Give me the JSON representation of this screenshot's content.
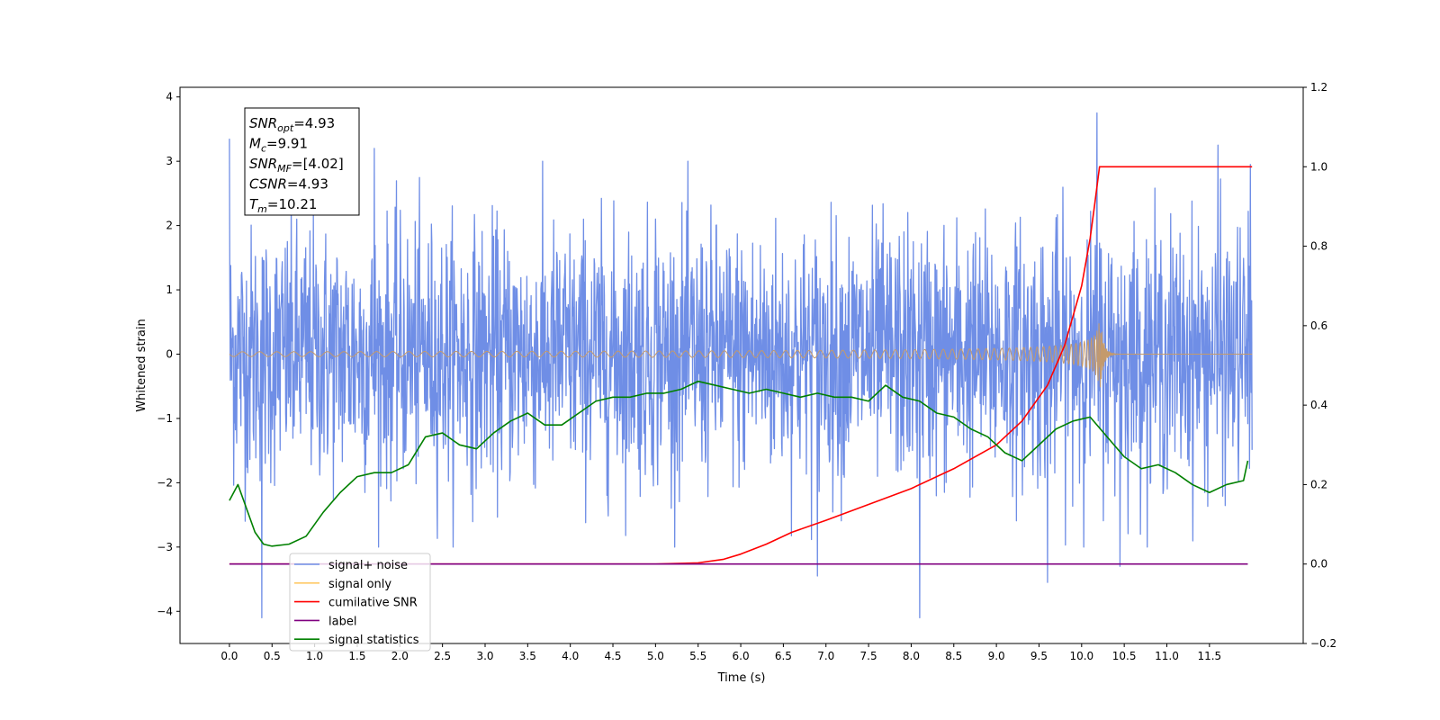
{
  "chart_data": {
    "type": "line",
    "xlabel": "Time (s)",
    "ylabel": "Whitened strain",
    "xlim": [
      -0.58,
      12.6
    ],
    "ylim": [
      -4.5,
      4.15
    ],
    "y2lim": [
      -0.2,
      1.2
    ],
    "x_ticks": [
      "0.0",
      "0.5",
      "1.0",
      "1.5",
      "2.0",
      "2.5",
      "3.0",
      "3.5",
      "4.0",
      "4.5",
      "5.0",
      "5.5",
      "6.0",
      "6.5",
      "7.0",
      "7.5",
      "8.0",
      "8.5",
      "9.0",
      "9.5",
      "10.0",
      "10.5",
      "11.0",
      "11.5"
    ],
    "y_ticks": [
      "4",
      "3",
      "2",
      "1",
      "0",
      "−1",
      "−2",
      "−3",
      "−4"
    ],
    "y2_ticks": [
      "1.2",
      "1.0",
      "0.8",
      "0.6",
      "0.4",
      "0.2",
      "0.0",
      "−0.2"
    ],
    "annotation": [
      {
        "base": "SNR",
        "sub": "opt",
        "rest": "=4.93"
      },
      {
        "base": "M",
        "sub": "c",
        "rest": "=9.91"
      },
      {
        "base": "SNR",
        "sub": "MF",
        "rest": "=[4.02]"
      },
      {
        "base": "CSNR",
        "sub": "",
        "rest": "=4.93"
      },
      {
        "base": "T",
        "sub": "m",
        "rest": "=10.21"
      }
    ],
    "legend_position": "lower-left",
    "series": [
      {
        "name": "signal+ noise",
        "color": "#6f8ee6",
        "axis": "left",
        "kind": "noise",
        "x_range": [
          0.0,
          12.0
        ],
        "typical_range": [
          -1.8,
          1.8
        ],
        "peaks": [
          [
            0.0,
            3.35
          ],
          [
            0.38,
            -4.1
          ],
          [
            1.7,
            3.2
          ],
          [
            5.0,
            2.1
          ],
          [
            6.9,
            -3.45
          ],
          [
            8.1,
            -4.1
          ],
          [
            9.6,
            -3.55
          ],
          [
            10.18,
            3.75
          ],
          [
            10.45,
            -3.3
          ],
          [
            11.6,
            3.25
          ],
          [
            11.98,
            2.95
          ]
        ]
      },
      {
        "name": "signal only",
        "color": "#c49a6c",
        "axis": "left",
        "kind": "chirp",
        "x_range": [
          0.0,
          10.21
        ],
        "peak_amplitude": 0.55,
        "merger_time": 10.21
      },
      {
        "name": "cumilative SNR",
        "color": "#ff0000",
        "axis": "right",
        "x": [
          0.0,
          5.0,
          5.5,
          5.8,
          6.0,
          6.3,
          6.6,
          7.0,
          7.5,
          8.0,
          8.5,
          9.0,
          9.3,
          9.6,
          9.8,
          10.0,
          10.1,
          10.15,
          10.21,
          10.4,
          12.0
        ],
        "values": [
          0.0,
          0.0,
          0.003,
          0.012,
          0.025,
          0.05,
          0.08,
          0.11,
          0.15,
          0.19,
          0.24,
          0.3,
          0.36,
          0.45,
          0.55,
          0.7,
          0.82,
          0.9,
          1.0,
          1.0,
          1.0
        ]
      },
      {
        "name": "label",
        "color": "#800080",
        "axis": "right",
        "x": [
          0.0,
          11.95
        ],
        "values": [
          0.0,
          0.0
        ]
      },
      {
        "name": "signal statistics",
        "color": "#008000",
        "axis": "right",
        "x": [
          0.0,
          0.1,
          0.2,
          0.3,
          0.4,
          0.5,
          0.7,
          0.9,
          1.1,
          1.3,
          1.5,
          1.7,
          1.9,
          2.1,
          2.3,
          2.5,
          2.7,
          2.9,
          3.1,
          3.3,
          3.5,
          3.7,
          3.9,
          4.1,
          4.3,
          4.5,
          4.7,
          4.9,
          5.1,
          5.3,
          5.5,
          5.7,
          5.9,
          6.1,
          6.3,
          6.5,
          6.7,
          6.9,
          7.1,
          7.3,
          7.5,
          7.7,
          7.9,
          8.1,
          8.3,
          8.5,
          8.7,
          8.9,
          9.1,
          9.3,
          9.5,
          9.7,
          9.9,
          10.1,
          10.3,
          10.5,
          10.7,
          10.9,
          11.1,
          11.3,
          11.5,
          11.7,
          11.9,
          11.95
        ],
        "values": [
          0.16,
          0.2,
          0.14,
          0.08,
          0.05,
          0.045,
          0.05,
          0.07,
          0.13,
          0.18,
          0.22,
          0.23,
          0.23,
          0.25,
          0.32,
          0.33,
          0.3,
          0.29,
          0.33,
          0.36,
          0.38,
          0.35,
          0.35,
          0.38,
          0.41,
          0.42,
          0.42,
          0.43,
          0.43,
          0.44,
          0.46,
          0.45,
          0.44,
          0.43,
          0.44,
          0.43,
          0.42,
          0.43,
          0.42,
          0.42,
          0.41,
          0.45,
          0.42,
          0.41,
          0.38,
          0.37,
          0.34,
          0.32,
          0.28,
          0.26,
          0.3,
          0.34,
          0.36,
          0.37,
          0.32,
          0.27,
          0.24,
          0.25,
          0.23,
          0.2,
          0.18,
          0.2,
          0.21,
          0.26
        ]
      }
    ]
  }
}
